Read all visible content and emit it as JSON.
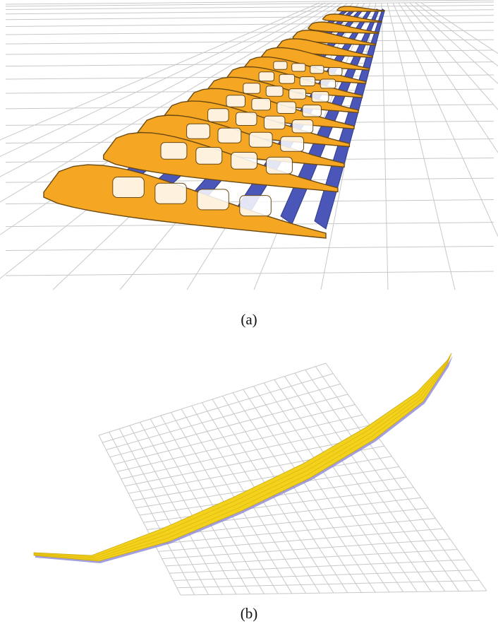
{
  "figure": {
    "panels": [
      {
        "label": "(a)",
        "content": "wing-structure-render",
        "colors": {
          "ribs": "#f5a623",
          "rib-edge": "#6b4a12",
          "spars-stringers": "#4a56b8",
          "grid": "#c8c8c8"
        }
      },
      {
        "label": "(b)",
        "content": "wing-surface-render",
        "colors": {
          "surface": "#f2d21c",
          "surface-edge": "#8c86d4",
          "grid": "#c8c8c8"
        }
      }
    ]
  }
}
